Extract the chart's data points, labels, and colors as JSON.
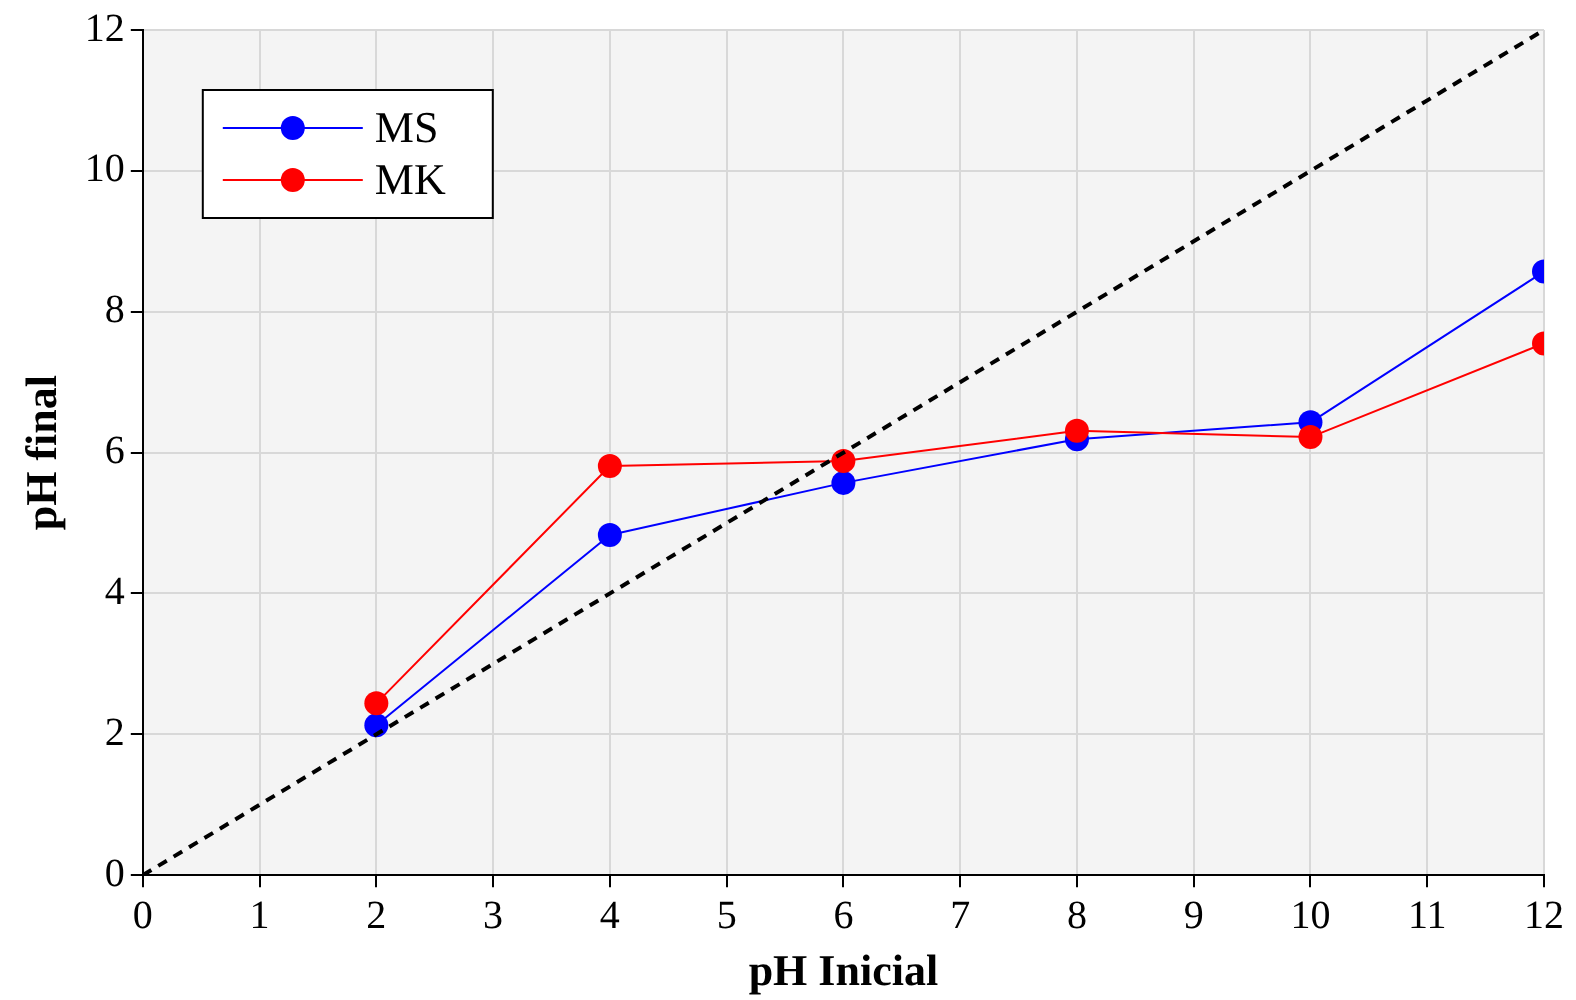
{
  "chart_data": {
    "type": "line",
    "xlabel": "pH Inicial",
    "ylabel": "pH final",
    "x": [
      2,
      4,
      6,
      8,
      10,
      12
    ],
    "series": [
      {
        "name": "MS",
        "color": "#0000ff",
        "values": [
          2.13,
          4.83,
          5.57,
          6.19,
          6.43,
          8.57
        ]
      },
      {
        "name": "MK",
        "color": "#ff0000",
        "values": [
          2.44,
          5.81,
          5.88,
          6.31,
          6.22,
          7.55
        ]
      },
      {
        "color": "#000000",
        "x": [
          0,
          12
        ],
        "values": [
          0,
          12
        ],
        "line_style": "dashed",
        "marker": "none"
      }
    ],
    "xlim": [
      0,
      12
    ],
    "xticks": [
      0,
      1,
      2,
      3,
      4,
      5,
      6,
      7,
      8,
      9,
      10,
      11,
      12
    ],
    "ylim": [
      0,
      12
    ],
    "yticks": [
      0,
      2,
      4,
      6,
      8,
      10,
      12
    ],
    "grid": true,
    "legend": "top left",
    "marker": "circle",
    "line_style": "solid"
  }
}
